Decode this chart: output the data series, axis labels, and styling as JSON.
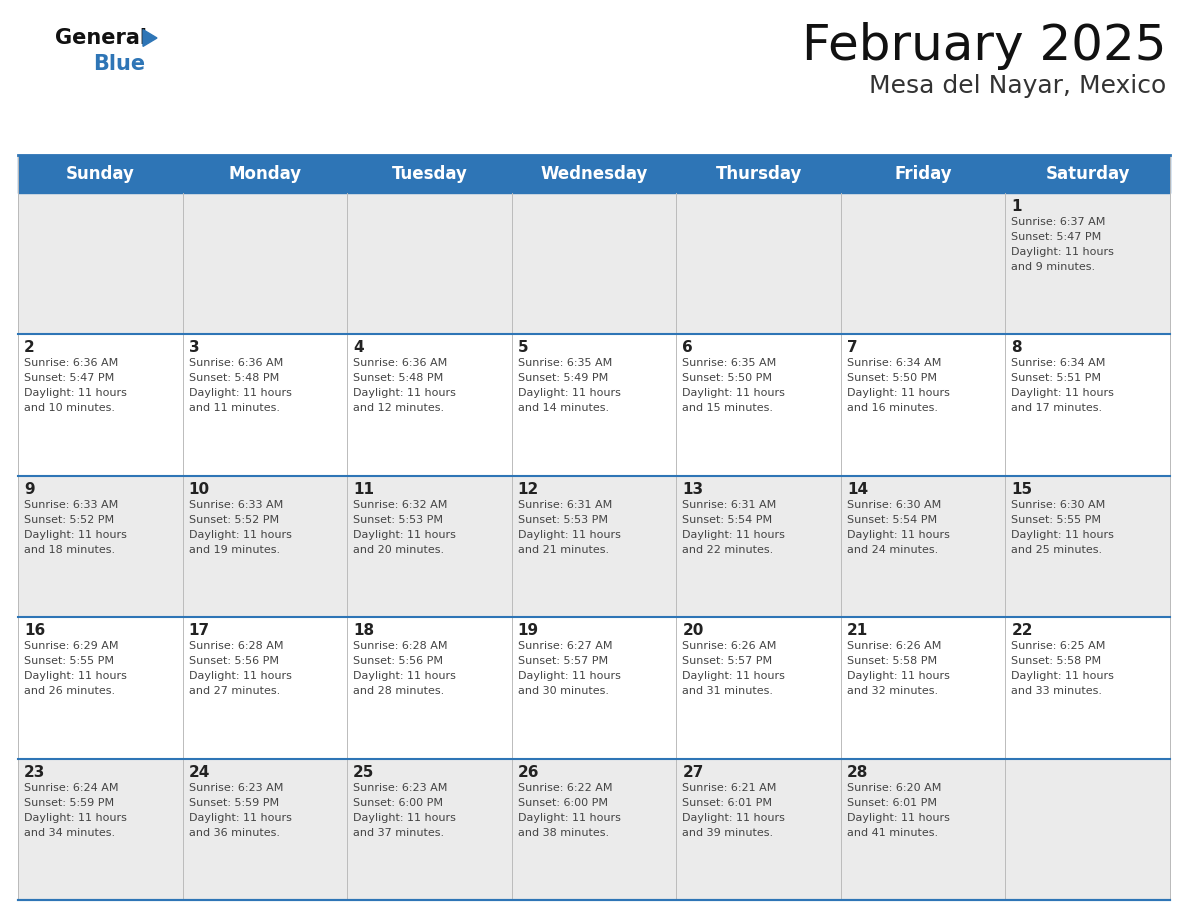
{
  "title": "February 2025",
  "subtitle": "Mesa del Nayar, Mexico",
  "header_color": "#2E75B6",
  "header_text_color": "#FFFFFF",
  "bg_color": "#FFFFFF",
  "cell_bg_even": "#EBEBEB",
  "cell_bg_odd": "#FFFFFF",
  "day_names": [
    "Sunday",
    "Monday",
    "Tuesday",
    "Wednesday",
    "Thursday",
    "Friday",
    "Saturday"
  ],
  "days": [
    {
      "day": 1,
      "col": 6,
      "row": 0,
      "sunrise": "6:37 AM",
      "sunset": "5:47 PM",
      "daylight": "11 hours and 9 minutes."
    },
    {
      "day": 2,
      "col": 0,
      "row": 1,
      "sunrise": "6:36 AM",
      "sunset": "5:47 PM",
      "daylight": "11 hours and 10 minutes."
    },
    {
      "day": 3,
      "col": 1,
      "row": 1,
      "sunrise": "6:36 AM",
      "sunset": "5:48 PM",
      "daylight": "11 hours and 11 minutes."
    },
    {
      "day": 4,
      "col": 2,
      "row": 1,
      "sunrise": "6:36 AM",
      "sunset": "5:48 PM",
      "daylight": "11 hours and 12 minutes."
    },
    {
      "day": 5,
      "col": 3,
      "row": 1,
      "sunrise": "6:35 AM",
      "sunset": "5:49 PM",
      "daylight": "11 hours and 14 minutes."
    },
    {
      "day": 6,
      "col": 4,
      "row": 1,
      "sunrise": "6:35 AM",
      "sunset": "5:50 PM",
      "daylight": "11 hours and 15 minutes."
    },
    {
      "day": 7,
      "col": 5,
      "row": 1,
      "sunrise": "6:34 AM",
      "sunset": "5:50 PM",
      "daylight": "11 hours and 16 minutes."
    },
    {
      "day": 8,
      "col": 6,
      "row": 1,
      "sunrise": "6:34 AM",
      "sunset": "5:51 PM",
      "daylight": "11 hours and 17 minutes."
    },
    {
      "day": 9,
      "col": 0,
      "row": 2,
      "sunrise": "6:33 AM",
      "sunset": "5:52 PM",
      "daylight": "11 hours and 18 minutes."
    },
    {
      "day": 10,
      "col": 1,
      "row": 2,
      "sunrise": "6:33 AM",
      "sunset": "5:52 PM",
      "daylight": "11 hours and 19 minutes."
    },
    {
      "day": 11,
      "col": 2,
      "row": 2,
      "sunrise": "6:32 AM",
      "sunset": "5:53 PM",
      "daylight": "11 hours and 20 minutes."
    },
    {
      "day": 12,
      "col": 3,
      "row": 2,
      "sunrise": "6:31 AM",
      "sunset": "5:53 PM",
      "daylight": "11 hours and 21 minutes."
    },
    {
      "day": 13,
      "col": 4,
      "row": 2,
      "sunrise": "6:31 AM",
      "sunset": "5:54 PM",
      "daylight": "11 hours and 22 minutes."
    },
    {
      "day": 14,
      "col": 5,
      "row": 2,
      "sunrise": "6:30 AM",
      "sunset": "5:54 PM",
      "daylight": "11 hours and 24 minutes."
    },
    {
      "day": 15,
      "col": 6,
      "row": 2,
      "sunrise": "6:30 AM",
      "sunset": "5:55 PM",
      "daylight": "11 hours and 25 minutes."
    },
    {
      "day": 16,
      "col": 0,
      "row": 3,
      "sunrise": "6:29 AM",
      "sunset": "5:55 PM",
      "daylight": "11 hours and 26 minutes."
    },
    {
      "day": 17,
      "col": 1,
      "row": 3,
      "sunrise": "6:28 AM",
      "sunset": "5:56 PM",
      "daylight": "11 hours and 27 minutes."
    },
    {
      "day": 18,
      "col": 2,
      "row": 3,
      "sunrise": "6:28 AM",
      "sunset": "5:56 PM",
      "daylight": "11 hours and 28 minutes."
    },
    {
      "day": 19,
      "col": 3,
      "row": 3,
      "sunrise": "6:27 AM",
      "sunset": "5:57 PM",
      "daylight": "11 hours and 30 minutes."
    },
    {
      "day": 20,
      "col": 4,
      "row": 3,
      "sunrise": "6:26 AM",
      "sunset": "5:57 PM",
      "daylight": "11 hours and 31 minutes."
    },
    {
      "day": 21,
      "col": 5,
      "row": 3,
      "sunrise": "6:26 AM",
      "sunset": "5:58 PM",
      "daylight": "11 hours and 32 minutes."
    },
    {
      "day": 22,
      "col": 6,
      "row": 3,
      "sunrise": "6:25 AM",
      "sunset": "5:58 PM",
      "daylight": "11 hours and 33 minutes."
    },
    {
      "day": 23,
      "col": 0,
      "row": 4,
      "sunrise": "6:24 AM",
      "sunset": "5:59 PM",
      "daylight": "11 hours and 34 minutes."
    },
    {
      "day": 24,
      "col": 1,
      "row": 4,
      "sunrise": "6:23 AM",
      "sunset": "5:59 PM",
      "daylight": "11 hours and 36 minutes."
    },
    {
      "day": 25,
      "col": 2,
      "row": 4,
      "sunrise": "6:23 AM",
      "sunset": "6:00 PM",
      "daylight": "11 hours and 37 minutes."
    },
    {
      "day": 26,
      "col": 3,
      "row": 4,
      "sunrise": "6:22 AM",
      "sunset": "6:00 PM",
      "daylight": "11 hours and 38 minutes."
    },
    {
      "day": 27,
      "col": 4,
      "row": 4,
      "sunrise": "6:21 AM",
      "sunset": "6:01 PM",
      "daylight": "11 hours and 39 minutes."
    },
    {
      "day": 28,
      "col": 5,
      "row": 4,
      "sunrise": "6:20 AM",
      "sunset": "6:01 PM",
      "daylight": "11 hours and 41 minutes."
    }
  ],
  "num_rows": 5,
  "num_cols": 7,
  "logo_text_general": "General",
  "logo_text_blue": "Blue",
  "text_color_day": "#222222",
  "text_color_info": "#444444",
  "separator_color": "#2E75B6",
  "cell_line_color": "#BBBBBB",
  "title_fontsize": 36,
  "subtitle_fontsize": 18,
  "header_fontsize": 12,
  "daynum_fontsize": 11,
  "info_fontsize": 8
}
